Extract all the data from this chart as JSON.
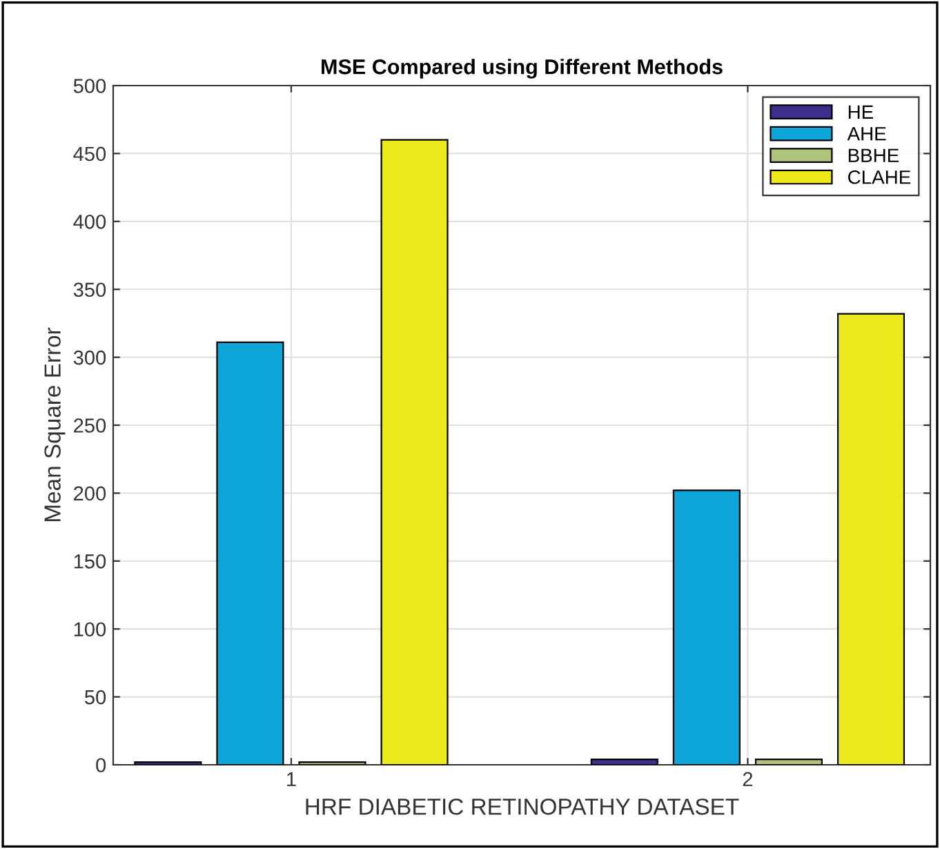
{
  "chart_data": {
    "type": "bar",
    "title": "MSE Compared using Different Methods",
    "xlabel": "HRF DIABETIC RETINOPATHY DATASET",
    "ylabel": "Mean Square Error",
    "categories": [
      "1",
      "2"
    ],
    "series": [
      {
        "name": "HE",
        "color": "#3e2f8f",
        "values": [
          2,
          4
        ]
      },
      {
        "name": "AHE",
        "color": "#0ea5d8",
        "values": [
          311,
          202
        ]
      },
      {
        "name": "BBHE",
        "color": "#aec47a",
        "values": [
          2,
          4
        ]
      },
      {
        "name": "CLAHE",
        "color": "#eee91d",
        "values": [
          460,
          332
        ]
      }
    ],
    "ylim": [
      0,
      500
    ],
    "yticks": [
      0,
      50,
      100,
      150,
      200,
      250,
      300,
      350,
      400,
      450,
      500
    ],
    "grid": true,
    "legend": "top right"
  }
}
